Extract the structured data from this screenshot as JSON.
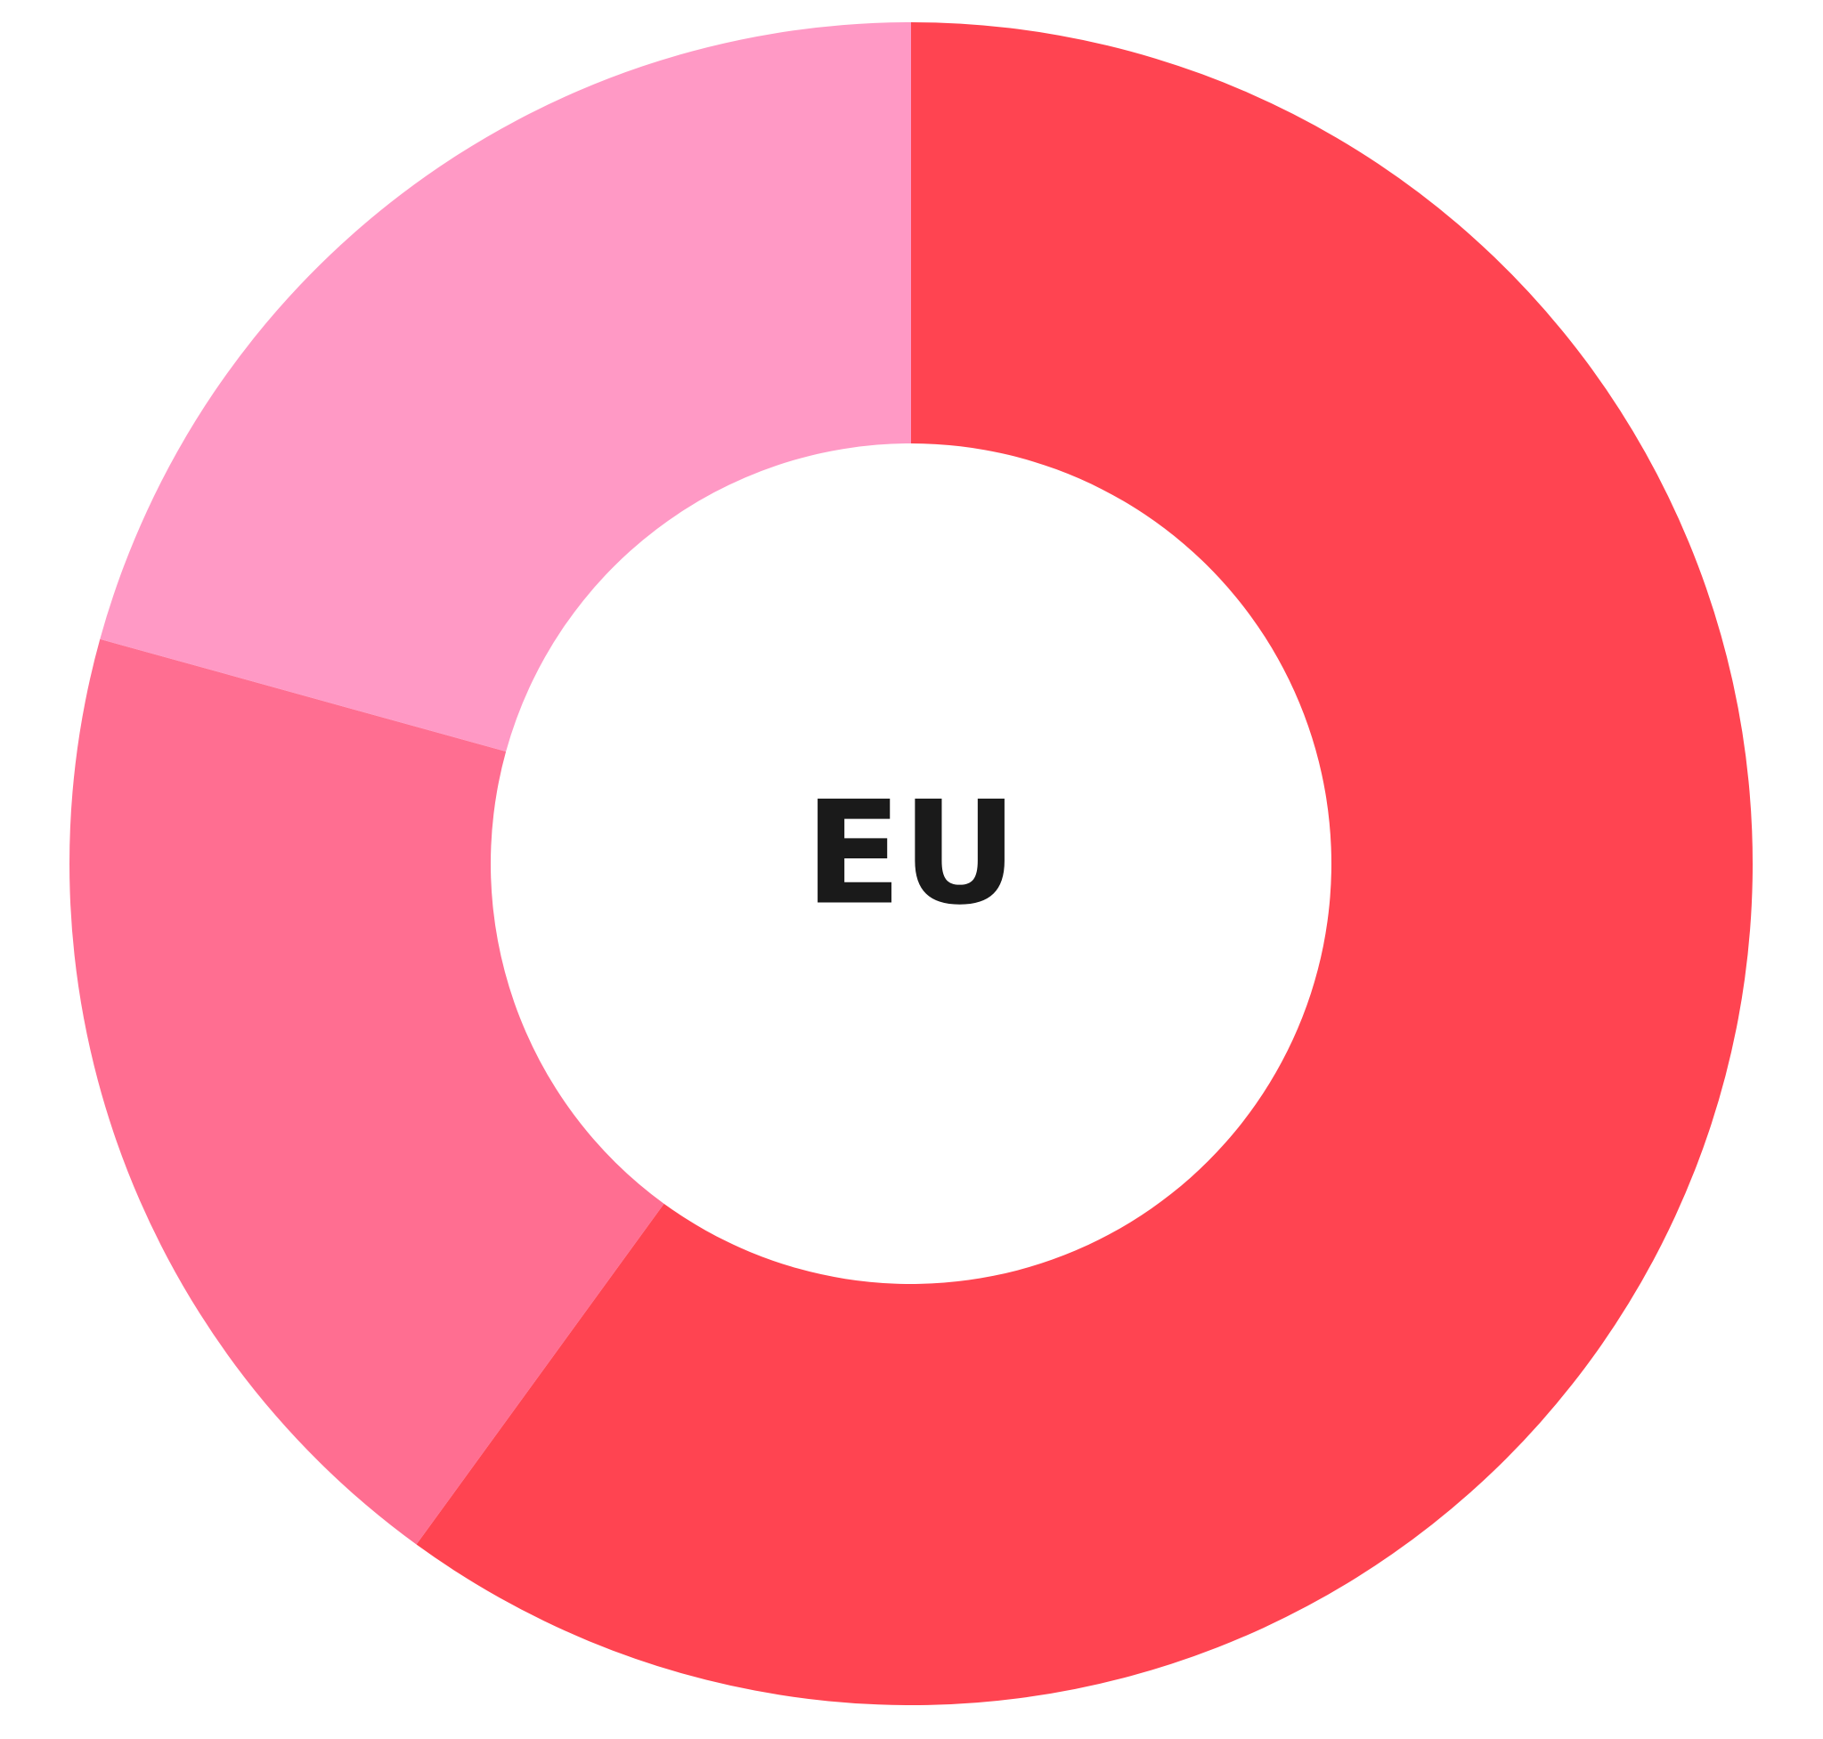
{
  "chart_data": {
    "type": "pie",
    "variant": "donut",
    "center_label": "EU",
    "slices": [
      {
        "value": 60.0,
        "color": "#FF4451"
      },
      {
        "value": 19.3,
        "color": "#FF6E91"
      },
      {
        "value": 20.7,
        "color": "#FF99C5"
      }
    ],
    "start_angle_deg": 0,
    "direction": "clockwise",
    "legend": "none"
  }
}
